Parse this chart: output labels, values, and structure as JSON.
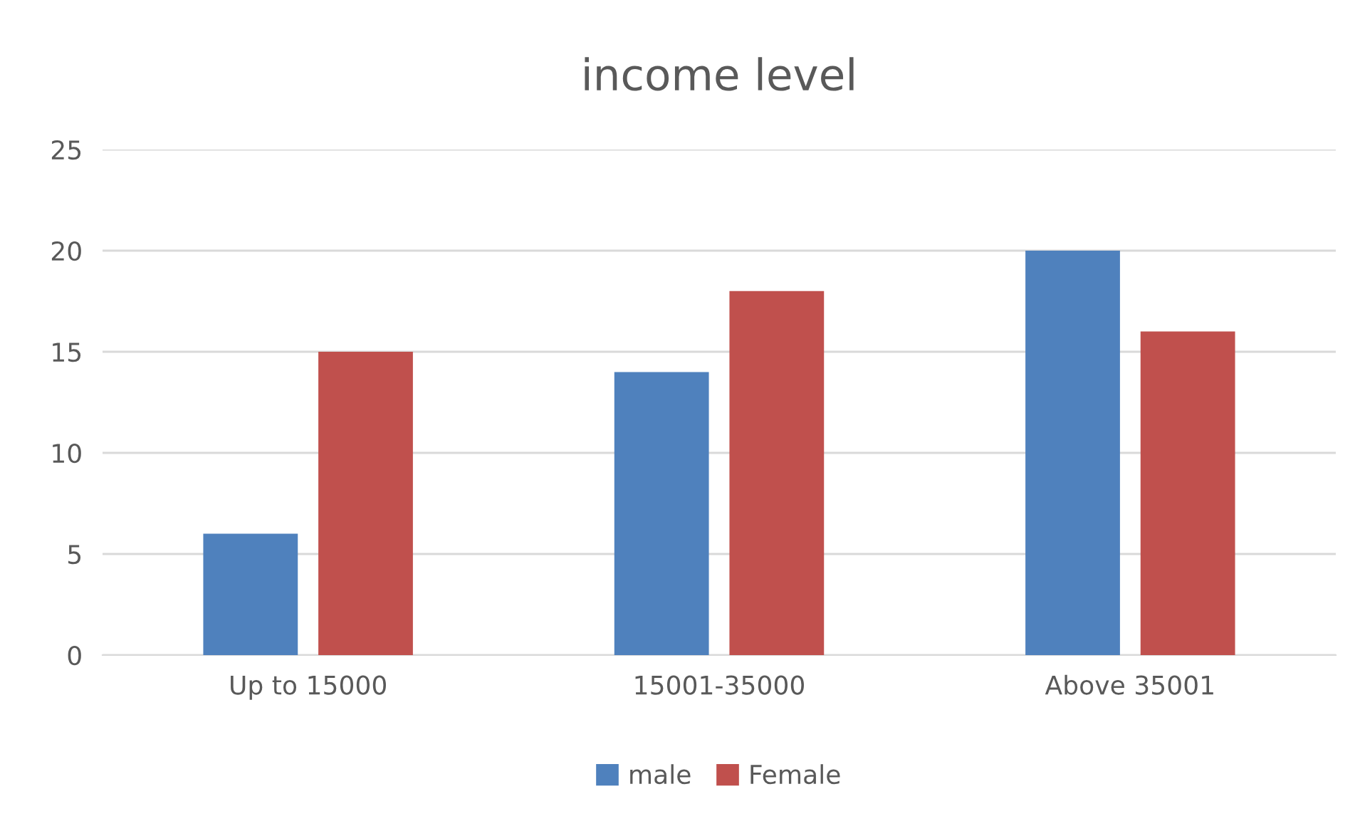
{
  "chart_data": {
    "type": "bar",
    "title": "income level",
    "categories": [
      "Up to 15000",
      "15001-35000",
      "Above 35001"
    ],
    "series": [
      {
        "name": "male",
        "color": "#4f81bd",
        "values": [
          6,
          14,
          20
        ]
      },
      {
        "name": "Female",
        "color": "#c0504d",
        "values": [
          15,
          18,
          16
        ]
      }
    ],
    "ylim": [
      0,
      25
    ],
    "yticks": [
      0,
      5,
      10,
      15,
      20,
      25
    ],
    "grid": "y",
    "legend": "bottom"
  }
}
